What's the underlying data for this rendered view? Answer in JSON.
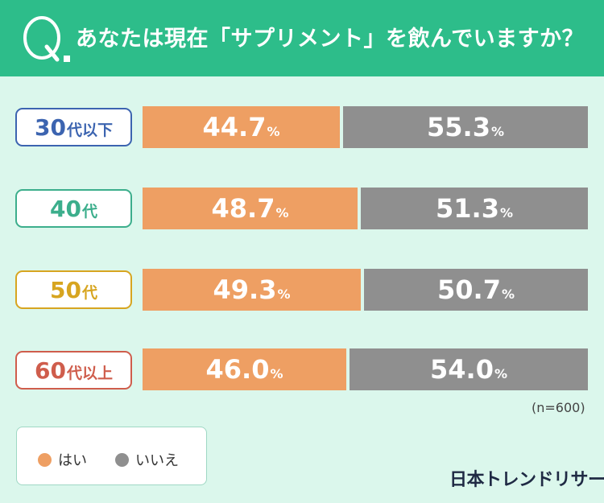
{
  "question": "あなたは現在「サプリメント」を飲んでいますか？",
  "sample_size": "(n=600)",
  "brand": "日本トレンドリサーチ",
  "legend": [
    {
      "label": "はい",
      "color": "#ee9f63"
    },
    {
      "label": "いいえ",
      "color": "#8f8f8f"
    }
  ],
  "colors": {
    "header": "#2dbd8a",
    "background": "#dbf7ec",
    "yes": "#ee9f63",
    "no": "#8f8f8f"
  },
  "chart_data": {
    "type": "bar",
    "orientation": "horizontal",
    "stacked": true,
    "categories": [
      "30代以下",
      "40代",
      "50代",
      "60代以上"
    ],
    "category_colors": [
      "#3c64b0",
      "#3cae8c",
      "#d7a520",
      "#cf5d4c"
    ],
    "series": [
      {
        "name": "はい",
        "values": [
          44.7,
          48.7,
          49.3,
          46.0
        ]
      },
      {
        "name": "いいえ",
        "values": [
          55.3,
          51.3,
          50.7,
          54.0
        ]
      }
    ],
    "unit": "%",
    "xlim": [
      0,
      100
    ]
  }
}
